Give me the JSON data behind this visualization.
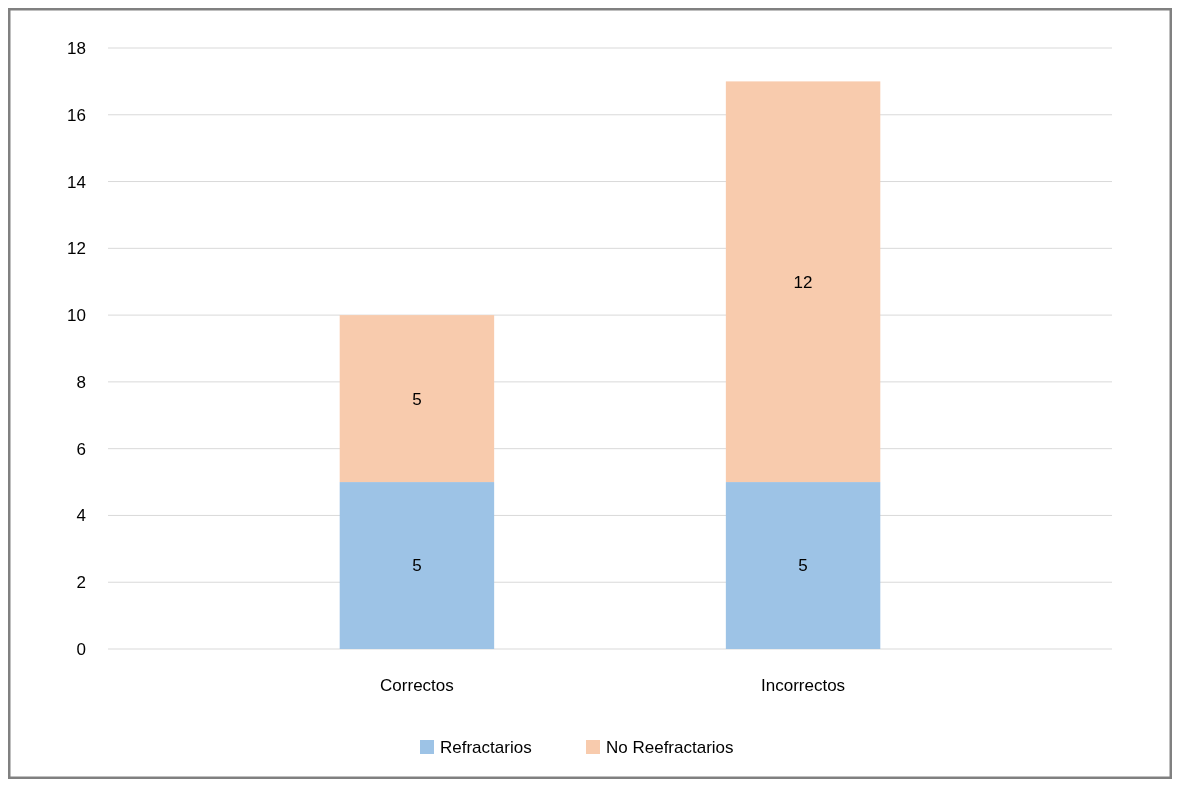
{
  "chart_data": {
    "type": "bar",
    "stacked": true,
    "categories": [
      "Correctos",
      "Incorrectos"
    ],
    "series": [
      {
        "name": "Refractarios",
        "color": "#9dc3e6",
        "values": [
          5,
          5
        ]
      },
      {
        "name": "No Reefractarios",
        "color": "#f8cbad",
        "values": [
          5,
          12
        ]
      }
    ],
    "ylim": [
      0,
      18
    ],
    "yticks": [
      0,
      2,
      4,
      6,
      8,
      10,
      12,
      14,
      16,
      18
    ],
    "grid": "y",
    "legend": "bottom",
    "data_labels": true
  }
}
